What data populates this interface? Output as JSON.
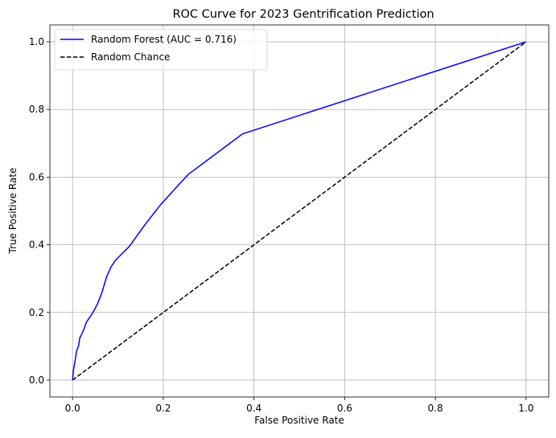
{
  "chart_data": {
    "type": "line",
    "title": "ROC Curve for 2023 Gentrification Prediction",
    "xlabel": "False Positive Rate",
    "ylabel": "True Positive Rate",
    "xlim": [
      -0.05,
      1.05
    ],
    "ylim": [
      -0.05,
      1.05
    ],
    "grid": true,
    "legend_position": "top-left",
    "x_ticks": [
      0.0,
      0.2,
      0.4,
      0.6,
      0.8,
      1.0
    ],
    "y_ticks": [
      0.0,
      0.2,
      0.4,
      0.6,
      0.8,
      1.0
    ],
    "x_tick_labels": [
      "0.0",
      "0.2",
      "0.4",
      "0.6",
      "0.8",
      "1.0"
    ],
    "y_tick_labels": [
      "0.0",
      "0.2",
      "0.4",
      "0.6",
      "0.8",
      "1.0"
    ],
    "series": [
      {
        "name": "Random Forest (AUC = 0.716)",
        "color": "#0000ff",
        "style": "solid",
        "x": [
          0.0,
          0.002,
          0.004,
          0.006,
          0.008,
          0.01,
          0.013,
          0.016,
          0.02,
          0.025,
          0.03,
          0.035,
          0.045,
          0.055,
          0.065,
          0.075,
          0.085,
          0.095,
          0.11,
          0.125,
          0.16,
          0.195,
          0.255,
          0.375,
          1.0
        ],
        "y": [
          0.0,
          0.03,
          0.045,
          0.06,
          0.08,
          0.09,
          0.1,
          0.125,
          0.135,
          0.15,
          0.17,
          0.18,
          0.2,
          0.225,
          0.26,
          0.305,
          0.335,
          0.355,
          0.375,
          0.395,
          0.46,
          0.52,
          0.608,
          0.728,
          1.0
        ]
      },
      {
        "name": "Random Chance",
        "color": "#000000",
        "style": "dashed",
        "x": [
          0.0,
          1.0
        ],
        "y": [
          0.0,
          1.0
        ]
      }
    ]
  }
}
